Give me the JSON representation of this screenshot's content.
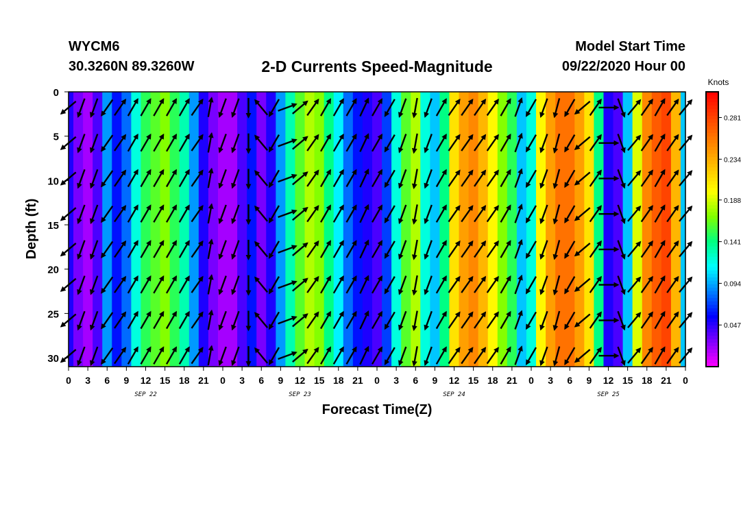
{
  "header": {
    "station": "WYCM6",
    "coordinates": "30.3260N 89.3260W",
    "title": "2-D Currents Speed-Magnitude",
    "model_start_label": "Model Start Time",
    "model_start_value": "09/22/2020 Hour 00"
  },
  "chart_data": {
    "type": "heatmap",
    "title": "2-D Currents Speed-Magnitude",
    "xlabel": "Forecast Time(Z)",
    "ylabel": "Depth (ft)",
    "x_tick_labels": [
      "0",
      "3",
      "6",
      "9",
      "12",
      "15",
      "18",
      "21",
      "0",
      "3",
      "6",
      "9",
      "12",
      "15",
      "18",
      "21",
      "0",
      "3",
      "6",
      "9",
      "12",
      "15",
      "18",
      "21",
      "0",
      "3",
      "6",
      "9",
      "12",
      "15",
      "18",
      "21",
      "0"
    ],
    "x_range_hours": [
      0,
      96
    ],
    "date_labels": [
      {
        "label": "SEP 22",
        "hour": 12
      },
      {
        "label": "SEP 23",
        "hour": 36
      },
      {
        "label": "SEP 24",
        "hour": 60
      },
      {
        "label": "SEP 25",
        "hour": 84
      }
    ],
    "y_ticks": [
      0,
      5,
      10,
      15,
      20,
      25,
      30
    ],
    "y_range_ft": [
      0,
      31
    ],
    "y_inverted": true,
    "colorbar": {
      "unit_label": "Knots",
      "tick_labels": [
        "0.281",
        "0.234",
        "0.188",
        "0.141",
        "0.094",
        "0.047"
      ],
      "tick_values": [
        0.281,
        0.234,
        0.188,
        0.141,
        0.094,
        0.047
      ],
      "range": [
        0,
        0.31
      ],
      "colors": [
        "#ff00ff",
        "#8000ff",
        "#0000ff",
        "#0080ff",
        "#00ffff",
        "#00ff80",
        "#80ff00",
        "#ffff00",
        "#ffc000",
        "#ff8000",
        "#ff4000",
        "#ff0000"
      ]
    },
    "speed_profile": {
      "hours": [
        0,
        1.5,
        3,
        4.5,
        6,
        7.5,
        9,
        10.5,
        12,
        13.5,
        15,
        16.5,
        18,
        19.5,
        21,
        22.5,
        24,
        25.5,
        27,
        28.5,
        30,
        31.5,
        33,
        34.5,
        36,
        37.5,
        39,
        40.5,
        42,
        43.5,
        45,
        46.5,
        48,
        49.5,
        51,
        52.5,
        54,
        55.5,
        57,
        58.5,
        60,
        61.5,
        63,
        64.5,
        66,
        67.5,
        69,
        70.5,
        72,
        73.5,
        75,
        76.5,
        78,
        79.5,
        81,
        82.5,
        84,
        85.5,
        87,
        88.5,
        90,
        91.5,
        93,
        94.5,
        96
      ],
      "knots": [
        0.05,
        0.03,
        0.02,
        0.04,
        0.09,
        0.06,
        0.08,
        0.12,
        0.15,
        0.16,
        0.17,
        0.15,
        0.13,
        0.09,
        0.05,
        0.03,
        0.02,
        0.02,
        0.04,
        0.06,
        0.03,
        0.05,
        0.09,
        0.13,
        0.16,
        0.18,
        0.17,
        0.14,
        0.11,
        0.08,
        0.06,
        0.05,
        0.04,
        0.07,
        0.12,
        0.16,
        0.18,
        0.12,
        0.1,
        0.14,
        0.21,
        0.24,
        0.25,
        0.23,
        0.2,
        0.17,
        0.15,
        0.1,
        0.12,
        0.2,
        0.24,
        0.26,
        0.26,
        0.24,
        0.21,
        0.14,
        0.05,
        0.04,
        0.1,
        0.19,
        0.25,
        0.27,
        0.28,
        0.23,
        0.1
      ]
    },
    "vector_columns_hours": [
      0,
      2,
      4,
      6,
      8,
      10,
      12,
      14,
      16,
      18,
      20,
      22,
      24,
      26,
      28,
      30,
      32,
      34,
      36,
      38,
      40,
      42,
      44,
      46,
      48,
      50,
      52,
      54,
      56,
      58,
      60,
      62,
      64,
      66,
      68,
      70,
      72,
      74,
      76,
      78,
      80,
      82,
      84,
      86,
      88,
      90,
      92,
      94,
      96
    ],
    "vector_rows_ft": [
      1,
      5,
      9,
      13,
      17,
      21,
      25,
      29
    ],
    "vector_directions_deg": [
      230,
      200,
      200,
      215,
      35,
      30,
      30,
      30,
      30,
      30,
      35,
      10,
      200,
      200,
      180,
      320,
      210,
      70,
      50,
      35,
      30,
      30,
      30,
      25,
      30,
      210,
      200,
      190,
      200,
      30,
      35,
      35,
      35,
      35,
      30,
      20,
      210,
      200,
      195,
      210,
      230,
      35,
      90,
      160,
      40,
      35,
      30,
      35,
      40
    ]
  }
}
